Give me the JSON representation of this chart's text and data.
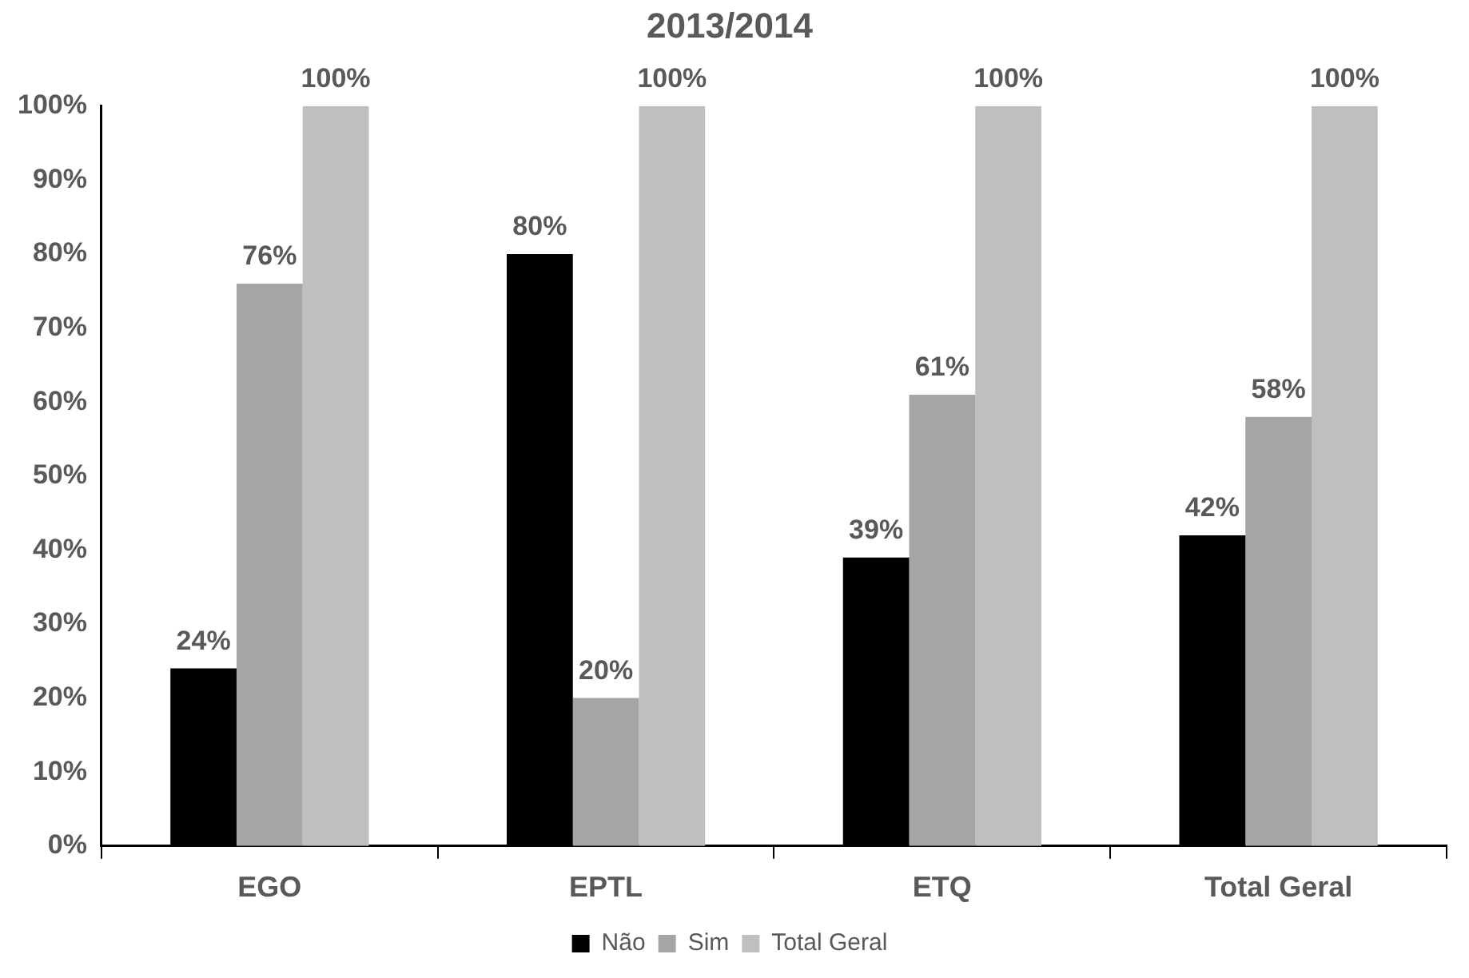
{
  "chart_data": {
    "type": "bar",
    "title": "2013/2014",
    "categories": [
      "EGO",
      "EPTL",
      "ETQ",
      "Total Geral"
    ],
    "series": [
      {
        "name": "Não",
        "color": "#000000",
        "values": [
          24,
          80,
          39,
          42
        ],
        "value_labels": [
          "24%",
          "80%",
          "39%",
          "42%"
        ]
      },
      {
        "name": "Sim",
        "color": "#a5a5a5",
        "values": [
          76,
          20,
          61,
          58
        ],
        "value_labels": [
          "76%",
          "20%",
          "61%",
          "58%"
        ]
      },
      {
        "name": "Total Geral",
        "color": "#bfbfbf",
        "values": [
          100,
          100,
          100,
          100
        ],
        "value_labels": [
          "100%",
          "100%",
          "100%",
          "100%"
        ]
      }
    ],
    "ylim": [
      0,
      100
    ],
    "yticks": [
      {
        "value": 0,
        "label": "0%"
      },
      {
        "value": 10,
        "label": "10%"
      },
      {
        "value": 20,
        "label": "20%"
      },
      {
        "value": 30,
        "label": "30%"
      },
      {
        "value": 40,
        "label": "40%"
      },
      {
        "value": 50,
        "label": "50%"
      },
      {
        "value": 60,
        "label": "60%"
      },
      {
        "value": 70,
        "label": "70%"
      },
      {
        "value": 80,
        "label": "80%"
      },
      {
        "value": 90,
        "label": "90%"
      },
      {
        "value": 100,
        "label": "100%"
      }
    ],
    "grid": false,
    "legend": "bottom"
  }
}
